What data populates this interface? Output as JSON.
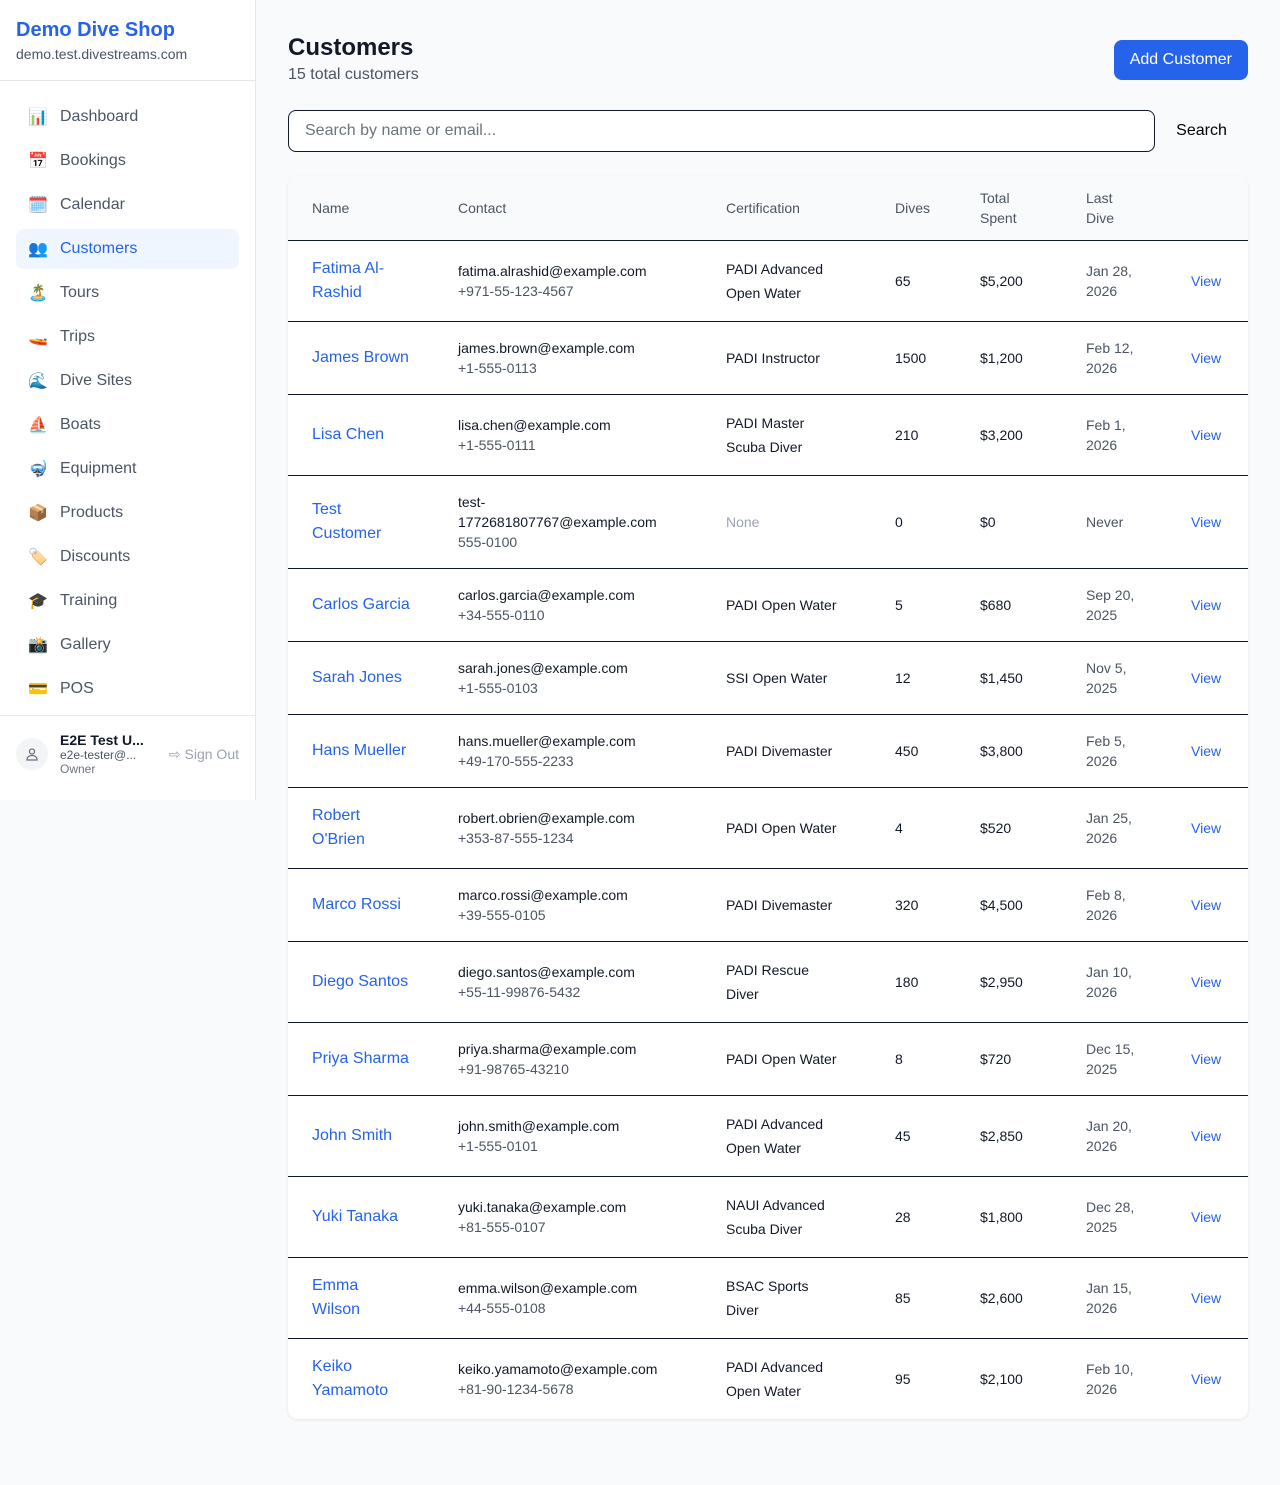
{
  "sidebar": {
    "shop_name": "Demo Dive Shop",
    "domain": "demo.test.divestreams.com",
    "items": [
      {
        "label": "Dashboard",
        "icon": "📊",
        "icon_name": "bar-chart-icon"
      },
      {
        "label": "Bookings",
        "icon": "📅",
        "icon_name": "calendar-date-icon"
      },
      {
        "label": "Calendar",
        "icon": "🗓️",
        "icon_name": "calendar-icon"
      },
      {
        "label": "Customers",
        "icon": "👥",
        "icon_name": "people-icon",
        "active": true
      },
      {
        "label": "Tours",
        "icon": "🏝️",
        "icon_name": "island-icon"
      },
      {
        "label": "Trips",
        "icon": "🚤",
        "icon_name": "speedboat-icon"
      },
      {
        "label": "Dive Sites",
        "icon": "🌊",
        "icon_name": "wave-icon"
      },
      {
        "label": "Boats",
        "icon": "⛵",
        "icon_name": "sailboat-icon"
      },
      {
        "label": "Equipment",
        "icon": "🤿",
        "icon_name": "diving-mask-icon"
      },
      {
        "label": "Products",
        "icon": "📦",
        "icon_name": "package-icon"
      },
      {
        "label": "Discounts",
        "icon": "🏷️",
        "icon_name": "tag-icon"
      },
      {
        "label": "Training",
        "icon": "🎓",
        "icon_name": "graduation-cap-icon"
      },
      {
        "label": "Gallery",
        "icon": "📸",
        "icon_name": "camera-icon"
      },
      {
        "label": "POS",
        "icon": "💳",
        "icon_name": "credit-card-icon"
      }
    ],
    "user": {
      "name": "E2E Test U...",
      "email": "e2e-tester@...",
      "role": "Owner",
      "sign_out": "Sign Out"
    }
  },
  "page": {
    "title": "Customers",
    "subtitle": "15 total customers",
    "add_button": "Add Customer",
    "search_placeholder": "Search by name or email...",
    "search_button": "Search"
  },
  "table": {
    "headers": [
      "Name",
      "Contact",
      "Certification",
      "Dives",
      "Total Spent",
      "Last Dive"
    ],
    "view_label": "View",
    "rows": [
      {
        "name": "Fatima Al-Rashid",
        "email": "fatima.alrashid@example.com",
        "phone": "+971-55-123-4567",
        "cert": "PADI Advanced Open Water",
        "dives": "65",
        "spent": "$5,200",
        "last": "Jan 28, 2026"
      },
      {
        "name": "James Brown",
        "email": "james.brown@example.com",
        "phone": "+1-555-0113",
        "cert": "PADI Instructor",
        "dives": "1500",
        "spent": "$1,200",
        "last": "Feb 12, 2026"
      },
      {
        "name": "Lisa Chen",
        "email": "lisa.chen@example.com",
        "phone": "+1-555-0111",
        "cert": "PADI Master Scuba Diver",
        "dives": "210",
        "spent": "$3,200",
        "last": "Feb 1, 2026"
      },
      {
        "name": "Test Customer",
        "email": "test-1772681807767@example.com",
        "phone": "555-0100",
        "cert": "None",
        "dives": "0",
        "spent": "$0",
        "last": "Never"
      },
      {
        "name": "Carlos Garcia",
        "email": "carlos.garcia@example.com",
        "phone": "+34-555-0110",
        "cert": "PADI Open Water",
        "dives": "5",
        "spent": "$680",
        "last": "Sep 20, 2025"
      },
      {
        "name": "Sarah Jones",
        "email": "sarah.jones@example.com",
        "phone": "+1-555-0103",
        "cert": "SSI Open Water",
        "dives": "12",
        "spent": "$1,450",
        "last": "Nov 5, 2025"
      },
      {
        "name": "Hans Mueller",
        "email": "hans.mueller@example.com",
        "phone": "+49-170-555-2233",
        "cert": "PADI Divemaster",
        "dives": "450",
        "spent": "$3,800",
        "last": "Feb 5, 2026"
      },
      {
        "name": "Robert O'Brien",
        "email": "robert.obrien@example.com",
        "phone": "+353-87-555-1234",
        "cert": "PADI Open Water",
        "dives": "4",
        "spent": "$520",
        "last": "Jan 25, 2026"
      },
      {
        "name": "Marco Rossi",
        "email": "marco.rossi@example.com",
        "phone": "+39-555-0105",
        "cert": "PADI Divemaster",
        "dives": "320",
        "spent": "$4,500",
        "last": "Feb 8, 2026"
      },
      {
        "name": "Diego Santos",
        "email": "diego.santos@example.com",
        "phone": "+55-11-99876-5432",
        "cert": "PADI Rescue Diver",
        "dives": "180",
        "spent": "$2,950",
        "last": "Jan 10, 2026"
      },
      {
        "name": "Priya Sharma",
        "email": "priya.sharma@example.com",
        "phone": "+91-98765-43210",
        "cert": "PADI Open Water",
        "dives": "8",
        "spent": "$720",
        "last": "Dec 15, 2025"
      },
      {
        "name": "John Smith",
        "email": "john.smith@example.com",
        "phone": "+1-555-0101",
        "cert": "PADI Advanced Open Water",
        "dives": "45",
        "spent": "$2,850",
        "last": "Jan 20, 2026"
      },
      {
        "name": "Yuki Tanaka",
        "email": "yuki.tanaka@example.com",
        "phone": "+81-555-0107",
        "cert": "NAUI Advanced Scuba Diver",
        "dives": "28",
        "spent": "$1,800",
        "last": "Dec 28, 2025"
      },
      {
        "name": "Emma Wilson",
        "email": "emma.wilson@example.com",
        "phone": "+44-555-0108",
        "cert": "BSAC Sports Diver",
        "dives": "85",
        "spent": "$2,600",
        "last": "Jan 15, 2026"
      },
      {
        "name": "Keiko Yamamoto",
        "email": "keiko.yamamoto@example.com",
        "phone": "+81-90-1234-5678",
        "cert": "PADI Advanced Open Water",
        "dives": "95",
        "spent": "$2,100",
        "last": "Feb 10, 2026"
      }
    ]
  }
}
